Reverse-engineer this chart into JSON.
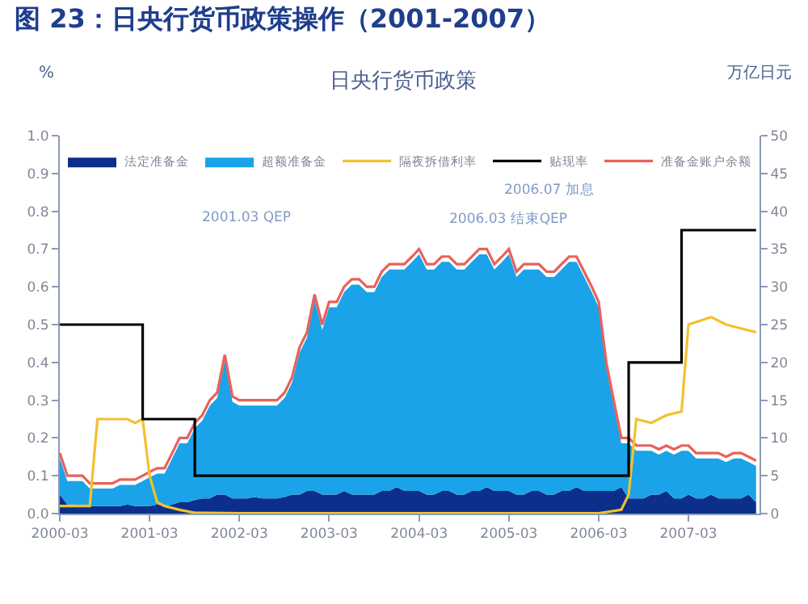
{
  "chart_data": {
    "type": "area",
    "stacked": true,
    "title": "图 23：日央行货币政策操作（2001-2007）",
    "subtitle": "日央行货币政策",
    "ylabel": "%",
    "y2label": "万亿日元",
    "legend": "top",
    "annotations": [
      "2001.03 QEP",
      "2006.03 结束QEP",
      "2006.07 加息"
    ],
    "x": [
      "2000-03",
      "2000-04",
      "2000-05",
      "2000-06",
      "2000-07",
      "2000-08",
      "2000-09",
      "2000-10",
      "2000-11",
      "2000-12",
      "2001-01",
      "2001-02",
      "2001-03",
      "2001-04",
      "2001-05",
      "2001-06",
      "2001-07",
      "2001-08",
      "2001-09",
      "2001-10",
      "2001-11",
      "2001-12",
      "2002-01",
      "2002-02",
      "2002-03",
      "2002-04",
      "2002-05",
      "2002-06",
      "2002-07",
      "2002-08",
      "2002-09",
      "2002-10",
      "2002-11",
      "2002-12",
      "2003-01",
      "2003-02",
      "2003-03",
      "2003-04",
      "2003-05",
      "2003-06",
      "2003-07",
      "2003-08",
      "2003-09",
      "2003-10",
      "2003-11",
      "2003-12",
      "2004-01",
      "2004-02",
      "2004-03",
      "2004-04",
      "2004-05",
      "2004-06",
      "2004-07",
      "2004-08",
      "2004-09",
      "2004-10",
      "2004-11",
      "2004-12",
      "2005-01",
      "2005-02",
      "2005-03",
      "2005-04",
      "2005-05",
      "2005-06",
      "2005-07",
      "2005-08",
      "2005-09",
      "2005-10",
      "2005-11",
      "2005-12",
      "2006-01",
      "2006-02",
      "2006-03",
      "2006-04",
      "2006-05",
      "2006-06",
      "2006-07",
      "2006-08",
      "2006-09",
      "2006-10",
      "2006-11",
      "2006-12",
      "2007-01",
      "2007-02",
      "2007-03",
      "2007-04",
      "2007-05",
      "2007-06",
      "2007-07",
      "2007-08",
      "2007-09",
      "2007-10",
      "2007-11",
      "2007-12"
    ],
    "xlim": [
      "2000-03",
      "2007-12-15"
    ],
    "xticks": [
      "2000-03",
      "2001-03",
      "2002-03",
      "2003-03",
      "2004-03",
      "2005-03",
      "2006-03",
      "2007-03"
    ],
    "ylim": [
      0,
      1
    ],
    "yticks": [
      {
        "value": 0,
        "label": "0.0"
      },
      0.1,
      0.2,
      0.3,
      0.4,
      0.5,
      0.6,
      0.7,
      0.8,
      0.9,
      {
        "value": 1,
        "label": "1.0"
      }
    ],
    "y2lim": [
      0,
      50
    ],
    "y2ticks": [
      0,
      5,
      10,
      15,
      20,
      25,
      30,
      35,
      40,
      45,
      50
    ],
    "series": [
      {
        "name": "法定准备金",
        "axis": "y2",
        "color": "#0b2f8a",
        "values": [
          2.5,
          1.2,
          1.2,
          1,
          1,
          1,
          1,
          1,
          1,
          1.2,
          1,
          1,
          1,
          1.2,
          1,
          1.2,
          1.5,
          1.5,
          1.8,
          2,
          2,
          2.5,
          2.5,
          2,
          2,
          2,
          2.2,
          2,
          2,
          2,
          2.2,
          2.5,
          2.5,
          3,
          3,
          2.5,
          2.5,
          2.5,
          3,
          2.5,
          2.5,
          2.5,
          2.5,
          3,
          3,
          3.5,
          3,
          3,
          3,
          2.5,
          2.5,
          3,
          3,
          2.5,
          2.5,
          3,
          3,
          3.5,
          3,
          3,
          3,
          2.5,
          2.5,
          3,
          3,
          2.5,
          2.5,
          3,
          3,
          3.5,
          3,
          3,
          3,
          3,
          3,
          3.5,
          2,
          2,
          2,
          2.5,
          2.5,
          3,
          2,
          2,
          2.5,
          2,
          2,
          2.5,
          2,
          2,
          2,
          2,
          2.5,
          1.5
        ]
      },
      {
        "name": "超额准备金",
        "axis": "y2",
        "color": "#1aa3e8",
        "values": [
          4.8,
          3.1,
          3.1,
          3.3,
          2.3,
          2.3,
          2.3,
          2.3,
          2.8,
          2.6,
          2.8,
          3.3,
          3.8,
          4.1,
          4.3,
          6.1,
          7.8,
          7.8,
          9.5,
          10.3,
          12.3,
          12.8,
          17.8,
          12.8,
          12.3,
          12.3,
          12.1,
          12.3,
          12.3,
          12.3,
          13.1,
          14.8,
          18.8,
          20.3,
          25.3,
          21.8,
          24.8,
          24.8,
          26.3,
          27.8,
          27.8,
          26.8,
          26.8,
          28.3,
          29.3,
          28.8,
          29.3,
          30.3,
          31.3,
          29.8,
          29.8,
          30.3,
          30.3,
          29.8,
          29.8,
          30.3,
          31.3,
          30.8,
          29.3,
          30.3,
          31.3,
          28.8,
          29.8,
          29.3,
          29.3,
          28.8,
          28.8,
          29.3,
          30.3,
          29.8,
          28.3,
          26.3,
          24.3,
          16.3,
          11.3,
          5.8,
          7.3,
          6.3,
          6.3,
          5.8,
          5.3,
          5.3,
          5.8,
          6.3,
          5.8,
          5.3,
          5.3,
          4.8,
          5.3,
          4.8,
          5.3,
          5.3,
          4.3,
          4.8
        ]
      },
      {
        "name": "隔夜拆借利率",
        "type": "line",
        "color": "#f2c12e",
        "x": [
          "2000-03",
          "2000-07",
          "2000-08",
          "2000-12",
          "2001-01",
          "2001-02",
          "2001-03",
          "2001-04",
          "2001-05",
          "2001-07",
          "2001-09",
          "2002-03",
          "2006-03",
          "2006-06",
          "2006-07",
          "2006-08",
          "2006-10",
          "2006-12",
          "2007-02",
          "2007-03",
          "2007-06",
          "2007-08",
          "2007-10",
          "2007-12"
        ],
        "values": [
          0.02,
          0.02,
          0.25,
          0.25,
          0.24,
          0.25,
          0.1,
          0.03,
          0.02,
          0.01,
          0.002,
          0.001,
          0.001,
          0.01,
          0.05,
          0.25,
          0.24,
          0.26,
          0.27,
          0.5,
          0.52,
          0.5,
          0.49,
          0.48
        ]
      },
      {
        "name": "贴现率",
        "type": "step",
        "color": "#000000",
        "x": [
          "2000-03",
          "2001-02",
          "2001-09",
          "2006-07",
          "2007-02",
          "2007-12"
        ],
        "values": [
          0.5,
          0.25,
          0.1,
          0.4,
          0.75,
          0.75
        ]
      },
      {
        "name": "准备金账户余额",
        "type": "line",
        "axis": "y2",
        "color": "#e8615a",
        "values": [
          8,
          5,
          5,
          5,
          4,
          4,
          4,
          4,
          4.5,
          4.5,
          4.5,
          5,
          5.5,
          6,
          6,
          8,
          10,
          10,
          12,
          13,
          15,
          16,
          21,
          15.5,
          15,
          15,
          15,
          15,
          15,
          15,
          16,
          18,
          22,
          24,
          29,
          25,
          28,
          28,
          30,
          31,
          31,
          30,
          30,
          32,
          33,
          33,
          33,
          34,
          35,
          33,
          33,
          34,
          34,
          33,
          33,
          34,
          35,
          35,
          33,
          34,
          35,
          32,
          33,
          33,
          33,
          32,
          32,
          33,
          34,
          34,
          32,
          30,
          28,
          20,
          15,
          10,
          10,
          9,
          9,
          9,
          8.5,
          9,
          8.5,
          9,
          9,
          8,
          8,
          8,
          8,
          7.5,
          8,
          8,
          7.5,
          7
        ]
      }
    ]
  }
}
